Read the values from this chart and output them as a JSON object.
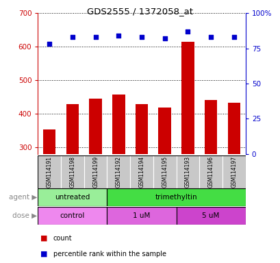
{
  "title": "GDS2555 / 1372058_at",
  "samples": [
    "GSM114191",
    "GSM114198",
    "GSM114199",
    "GSM114192",
    "GSM114194",
    "GSM114195",
    "GSM114193",
    "GSM114196",
    "GSM114197"
  ],
  "counts": [
    352,
    428,
    445,
    458,
    428,
    418,
    615,
    440,
    432
  ],
  "percentiles": [
    78,
    83,
    83,
    84,
    83,
    82,
    87,
    83,
    83
  ],
  "ylim_left": [
    280,
    700
  ],
  "ylim_right": [
    0,
    100
  ],
  "yticks_left": [
    300,
    400,
    500,
    600,
    700
  ],
  "yticks_right": [
    0,
    25,
    50,
    75,
    100
  ],
  "ytick_labels_right": [
    "0",
    "25",
    "50",
    "75",
    "100%"
  ],
  "agent_groups": [
    {
      "label": "untreated",
      "start": 0,
      "end": 3,
      "color": "#99EE99"
    },
    {
      "label": "trimethyltin",
      "start": 3,
      "end": 9,
      "color": "#44DD44"
    }
  ],
  "dose_groups": [
    {
      "label": "control",
      "start": 0,
      "end": 3,
      "color": "#EE88EE"
    },
    {
      "label": "1 uM",
      "start": 3,
      "end": 6,
      "color": "#DD66DD"
    },
    {
      "label": "5 uM",
      "start": 6,
      "end": 9,
      "color": "#CC44CC"
    }
  ],
  "bar_color": "#CC0000",
  "dot_color": "#0000CC",
  "left_tick_color": "#CC0000",
  "right_tick_color": "#0000CC",
  "grid_color": "black",
  "bg_label": "#C8C8C8",
  "agent_label": "agent",
  "dose_label": "dose",
  "legend_count": "count",
  "legend_pct": "percentile rank within the sample",
  "bar_width": 0.55
}
